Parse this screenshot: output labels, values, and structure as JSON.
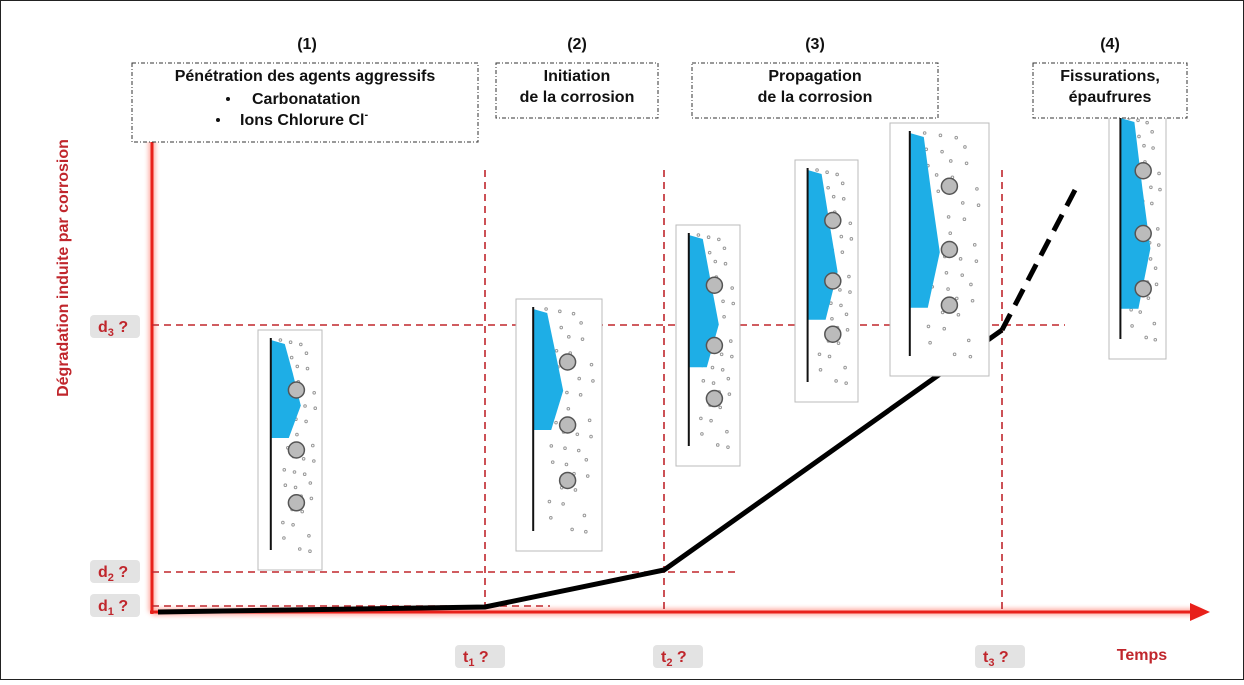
{
  "phases": [
    {
      "number": "(1)",
      "lines": [
        "Pénétration des agents aggressifs"
      ],
      "bullets": [
        "Carbonatation",
        {
          "text": "Ions Chlorure Cl",
          "sup": "-"
        }
      ]
    },
    {
      "number": "(2)",
      "lines": [
        "Initiation",
        "de la corrosion"
      ]
    },
    {
      "number": "(3)",
      "lines": [
        "Propagation",
        "de la corrosion"
      ]
    },
    {
      "number": "(4)",
      "lines": [
        "Fissurations,",
        "épaufrures"
      ]
    }
  ],
  "y_axis": {
    "label": "Dégradation induite par corrosion"
  },
  "x_axis": {
    "label": "Temps"
  },
  "y_markers": [
    {
      "base": "d",
      "sub": "1",
      "suffix": " ?"
    },
    {
      "base": "d",
      "sub": "2",
      "suffix": " ?"
    },
    {
      "base": "d",
      "sub": "3",
      "suffix": " ?"
    }
  ],
  "x_markers": [
    {
      "base": "t",
      "sub": "1",
      "suffix": " ?"
    },
    {
      "base": "t",
      "sub": "2",
      "suffix": " ?"
    },
    {
      "base": "t",
      "sub": "3",
      "suffix": " ?"
    }
  ]
}
